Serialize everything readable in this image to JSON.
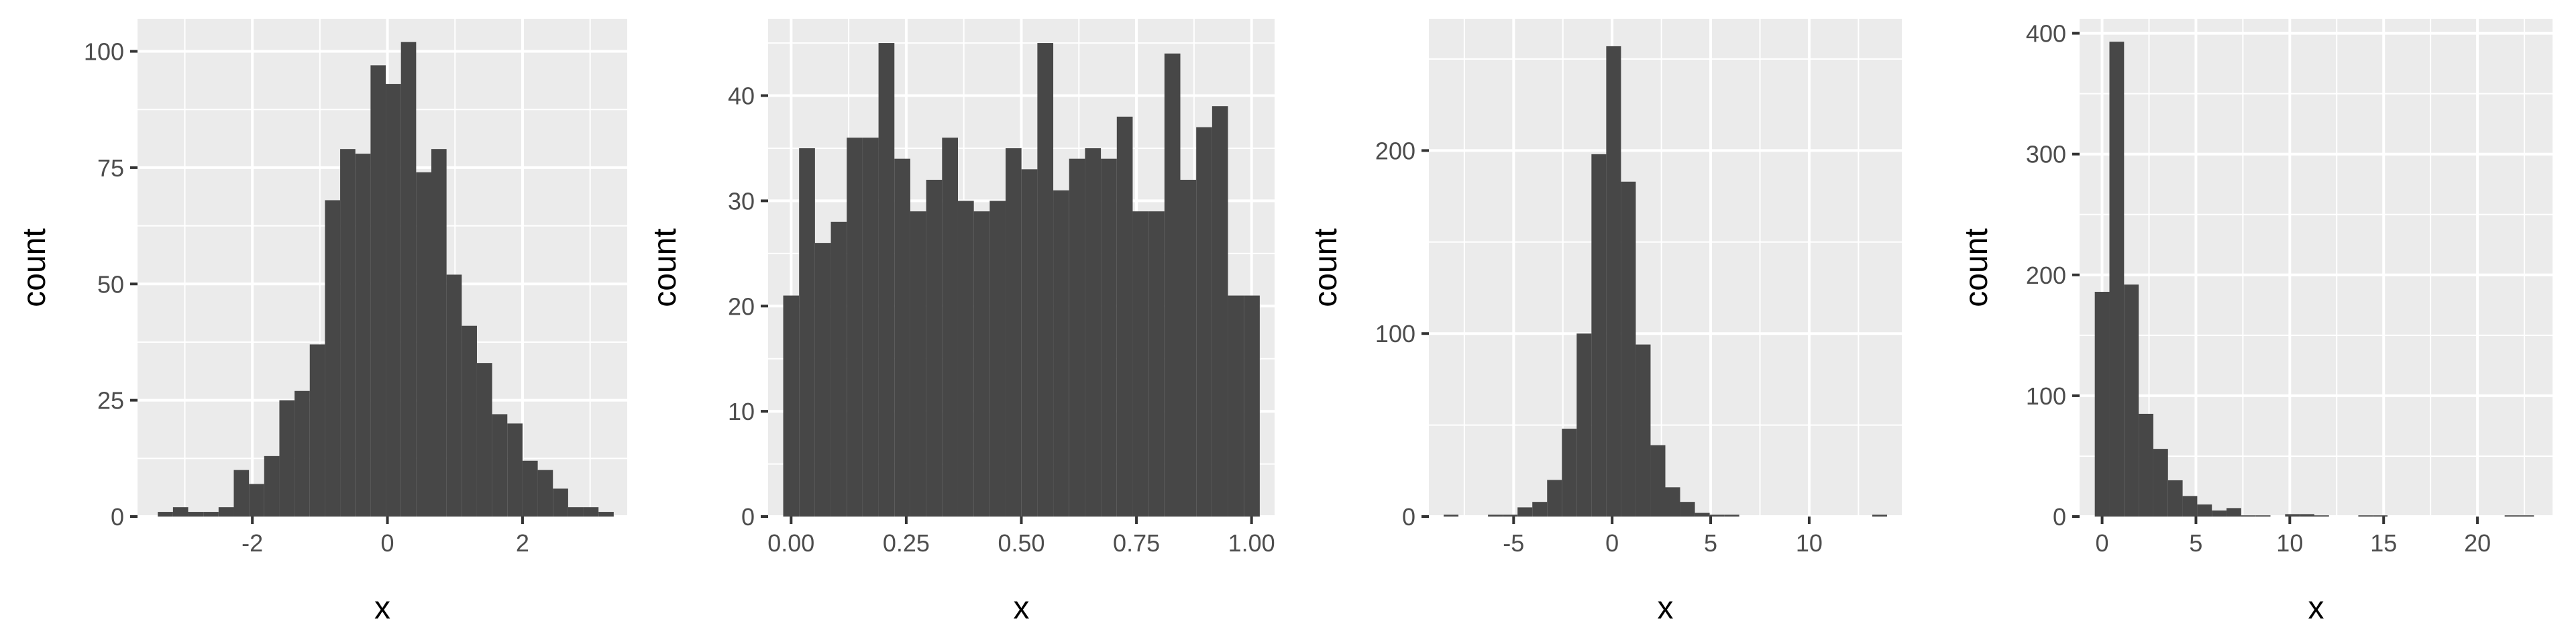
{
  "colors": {
    "panel_background": "#ebebeb",
    "grid": "#ffffff",
    "bar_fill": "#474747",
    "tick_text": "#4d4d4d",
    "axis_title": "#000000"
  },
  "chart_data": [
    {
      "type": "bar",
      "subtype": "histogram",
      "xlabel": "x",
      "ylabel": "count",
      "grid": true,
      "xlim": [
        -3.7,
        3.55
      ],
      "ylim": [
        0,
        107
      ],
      "x_ticks": [
        -2,
        0,
        2
      ],
      "x_tick_labels": [
        "-2",
        "0",
        "2"
      ],
      "y_ticks": [
        0,
        25,
        50,
        75,
        100
      ],
      "y_tick_labels": [
        "0",
        "25",
        "50",
        "75",
        "100"
      ],
      "bins": {
        "start": -3.4,
        "width": 0.225,
        "counts": [
          1,
          2,
          1,
          1,
          2,
          10,
          7,
          13,
          25,
          27,
          37,
          68,
          79,
          78,
          97,
          93,
          102,
          74,
          79,
          52,
          41,
          33,
          22,
          20,
          12,
          10,
          6,
          2,
          2,
          1
        ]
      }
    },
    {
      "type": "bar",
      "subtype": "histogram",
      "xlabel": "x",
      "ylabel": "count",
      "grid": true,
      "xlim": [
        -0.05,
        1.05
      ],
      "ylim": [
        0,
        47.3
      ],
      "x_ticks": [
        0,
        0.25,
        0.5,
        0.75,
        1
      ],
      "x_tick_labels": [
        "0.00",
        "0.25",
        "0.50",
        "0.75",
        "1.00"
      ],
      "y_ticks": [
        0,
        10,
        20,
        30,
        40
      ],
      "y_tick_labels": [
        "0",
        "10",
        "20",
        "30",
        "40"
      ],
      "bins": {
        "start": -0.0172,
        "width": 0.0345,
        "counts": [
          21,
          35,
          26,
          28,
          36,
          36,
          45,
          34,
          29,
          32,
          36,
          30,
          29,
          30,
          35,
          33,
          45,
          31,
          34,
          35,
          34,
          38,
          29,
          29,
          44,
          32,
          37,
          39,
          21,
          21
        ]
      }
    },
    {
      "type": "bar",
      "subtype": "histogram",
      "xlabel": "x",
      "ylabel": "count",
      "grid": true,
      "xlim": [
        -9.3,
        14.7
      ],
      "ylim": [
        0,
        272
      ],
      "x_ticks": [
        -5,
        0,
        5,
        10
      ],
      "x_tick_labels": [
        "-5",
        "0",
        "5",
        "10"
      ],
      "y_ticks": [
        0,
        100,
        200
      ],
      "y_tick_labels": [
        "0",
        "100",
        "200"
      ],
      "bins": {
        "start": -8.55,
        "width": 0.75,
        "counts": [
          1,
          0,
          0,
          1,
          1,
          5,
          8,
          20,
          48,
          100,
          198,
          257,
          183,
          94,
          39,
          16,
          8,
          2,
          1,
          1,
          0,
          0,
          0,
          0,
          0,
          0,
          0,
          0,
          0,
          1
        ]
      }
    },
    {
      "type": "bar",
      "subtype": "histogram",
      "xlabel": "x",
      "ylabel": "count",
      "grid": true,
      "xlim": [
        -1.2,
        24.0
      ],
      "ylim": [
        0,
        412
      ],
      "x_ticks": [
        0,
        5,
        10,
        15,
        20
      ],
      "x_tick_labels": [
        "0",
        "5",
        "10",
        "15",
        "20"
      ],
      "y_ticks": [
        0,
        100,
        200,
        300,
        400
      ],
      "y_tick_labels": [
        "0",
        "100",
        "200",
        "300",
        "400"
      ],
      "bins": {
        "start": -0.39,
        "width": 0.78,
        "counts": [
          186,
          393,
          192,
          85,
          56,
          30,
          17,
          10,
          5,
          7,
          1,
          1,
          0,
          2,
          2,
          1,
          0,
          0,
          1,
          1,
          0,
          0,
          0,
          0,
          0,
          0,
          0,
          0,
          1,
          1
        ]
      }
    }
  ]
}
